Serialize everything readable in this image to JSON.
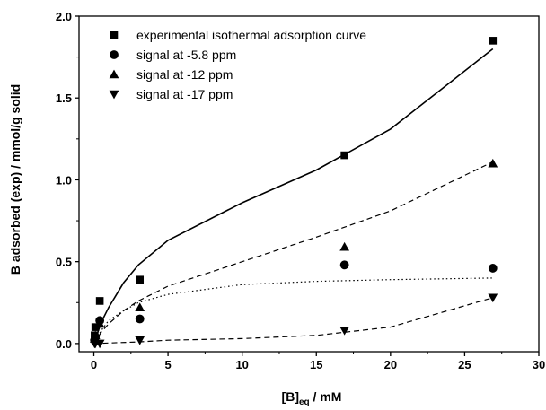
{
  "chart_data": {
    "type": "scatter",
    "xlabel": {
      "main": "[B]",
      "sub": "eq",
      "rest": " / mM"
    },
    "ylabel": "B adsorbed (exp) / mmol/g solid",
    "xlim": [
      -1,
      30
    ],
    "ylim": [
      -0.05,
      2.0
    ],
    "x_ticks": [
      0,
      5,
      10,
      15,
      20,
      25,
      30
    ],
    "y_ticks": [
      0.0,
      0.5,
      1.0,
      1.5,
      2.0
    ],
    "x_minor_step": 2.5,
    "y_minor_step": 0.25,
    "grid": false,
    "legend_position": "top-left",
    "series": [
      {
        "name": "experimental isothermal adsorption curve",
        "marker": "square",
        "points": [
          [
            0.05,
            0.05
          ],
          [
            0.1,
            0.1
          ],
          [
            0.4,
            0.26
          ],
          [
            3.1,
            0.39
          ],
          [
            16.9,
            1.15
          ],
          [
            26.9,
            1.85
          ]
        ]
      },
      {
        "name": "signal at -5.8 ppm",
        "marker": "circle",
        "points": [
          [
            0.05,
            0.02
          ],
          [
            0.1,
            0.04
          ],
          [
            0.4,
            0.14
          ],
          [
            3.1,
            0.15
          ],
          [
            16.9,
            0.48
          ],
          [
            26.9,
            0.46
          ]
        ]
      },
      {
        "name": "signal at -12 ppm",
        "marker": "triangle-up",
        "points": [
          [
            0.05,
            0.03
          ],
          [
            0.1,
            0.05
          ],
          [
            0.4,
            0.12
          ],
          [
            3.1,
            0.22
          ],
          [
            16.9,
            0.59
          ],
          [
            26.9,
            1.1
          ]
        ]
      },
      {
        "name": "signal at -17 ppm",
        "marker": "triangle-down",
        "points": [
          [
            0.05,
            0.0
          ],
          [
            0.1,
            0.0
          ],
          [
            0.4,
            0.0
          ],
          [
            3.1,
            0.02
          ],
          [
            16.9,
            0.08
          ],
          [
            26.9,
            0.28
          ]
        ]
      }
    ],
    "fit_lines": [
      {
        "style": "solid",
        "points": [
          [
            0,
            0
          ],
          [
            0.5,
            0.13
          ],
          [
            1,
            0.22
          ],
          [
            2,
            0.37
          ],
          [
            3,
            0.48
          ],
          [
            5,
            0.63
          ],
          [
            10,
            0.86
          ],
          [
            15,
            1.06
          ],
          [
            20,
            1.31
          ],
          [
            26.9,
            1.8
          ]
        ]
      },
      {
        "style": "dashed",
        "points": [
          [
            0,
            0
          ],
          [
            0.5,
            0.07
          ],
          [
            1,
            0.12
          ],
          [
            2,
            0.2
          ],
          [
            3,
            0.26
          ],
          [
            5,
            0.35
          ],
          [
            10,
            0.5
          ],
          [
            15,
            0.65
          ],
          [
            20,
            0.81
          ],
          [
            26.9,
            1.11
          ]
        ]
      },
      {
        "style": "dotted",
        "points": [
          [
            0,
            0
          ],
          [
            0.5,
            0.08
          ],
          [
            1,
            0.14
          ],
          [
            2,
            0.2
          ],
          [
            3,
            0.25
          ],
          [
            5,
            0.3
          ],
          [
            10,
            0.36
          ],
          [
            15,
            0.38
          ],
          [
            20,
            0.39
          ],
          [
            26.9,
            0.4
          ]
        ]
      },
      {
        "style": "dashed",
        "points": [
          [
            0,
            0
          ],
          [
            3,
            0.01
          ],
          [
            5,
            0.02
          ],
          [
            10,
            0.03
          ],
          [
            15,
            0.05
          ],
          [
            20,
            0.1
          ],
          [
            26.9,
            0.28
          ]
        ]
      }
    ]
  }
}
